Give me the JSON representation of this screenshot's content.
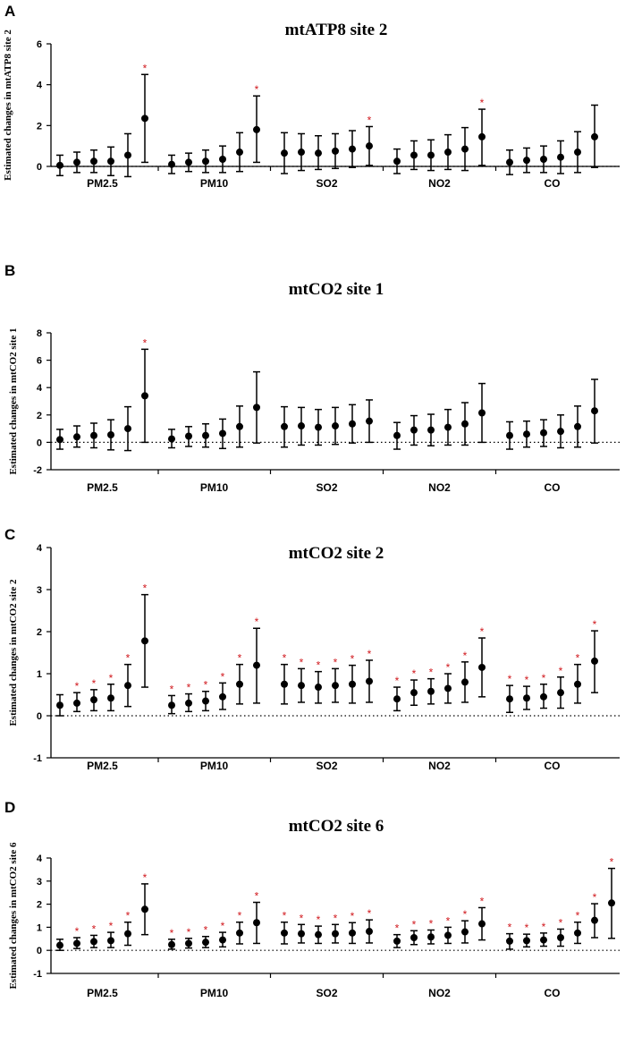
{
  "figure": {
    "colors": {
      "marker": "#000000",
      "significance": "#d0161b"
    }
  },
  "chart_data": [
    {
      "panel_letter": "A",
      "type": "scatter",
      "title": "mtATP8 site 2",
      "ylabel": "Estimated changes in mtATP8 site 2",
      "xlabel": "",
      "ylim": [
        0,
        6
      ],
      "yticks": [
        "0",
        "2",
        "4",
        "6"
      ],
      "reference_line": 0,
      "categories": [
        "PM2.5",
        "PM10",
        "SO2",
        "NO2",
        "CO"
      ],
      "groups": [
        {
          "category": "PM2.5",
          "points": [
            {
              "est": 0.05,
              "lo": -0.45,
              "hi": 0.55,
              "sig": false
            },
            {
              "est": 0.2,
              "lo": -0.3,
              "hi": 0.7,
              "sig": false
            },
            {
              "est": 0.25,
              "lo": -0.3,
              "hi": 0.8,
              "sig": false
            },
            {
              "est": 0.25,
              "lo": -0.45,
              "hi": 0.95,
              "sig": false
            },
            {
              "est": 0.55,
              "lo": -0.5,
              "hi": 1.6,
              "sig": false
            },
            {
              "est": 2.35,
              "lo": 0.2,
              "hi": 4.5,
              "sig": true
            }
          ]
        },
        {
          "category": "PM10",
          "points": [
            {
              "est": 0.1,
              "lo": -0.35,
              "hi": 0.55,
              "sig": false
            },
            {
              "est": 0.2,
              "lo": -0.25,
              "hi": 0.65,
              "sig": false
            },
            {
              "est": 0.25,
              "lo": -0.3,
              "hi": 0.8,
              "sig": false
            },
            {
              "est": 0.35,
              "lo": -0.3,
              "hi": 1.0,
              "sig": false
            },
            {
              "est": 0.7,
              "lo": -0.25,
              "hi": 1.65,
              "sig": false
            },
            {
              "est": 1.8,
              "lo": 0.2,
              "hi": 3.45,
              "sig": true
            }
          ]
        },
        {
          "category": "SO2",
          "points": [
            {
              "est": 0.65,
              "lo": -0.35,
              "hi": 1.65,
              "sig": false
            },
            {
              "est": 0.7,
              "lo": -0.2,
              "hi": 1.6,
              "sig": false
            },
            {
              "est": 0.65,
              "lo": -0.15,
              "hi": 1.5,
              "sig": false
            },
            {
              "est": 0.75,
              "lo": -0.1,
              "hi": 1.6,
              "sig": false
            },
            {
              "est": 0.85,
              "lo": -0.05,
              "hi": 1.75,
              "sig": false
            },
            {
              "est": 1.0,
              "lo": 0.05,
              "hi": 1.95,
              "sig": true
            }
          ]
        },
        {
          "category": "NO2",
          "points": [
            {
              "est": 0.25,
              "lo": -0.35,
              "hi": 0.85,
              "sig": false
            },
            {
              "est": 0.55,
              "lo": -0.15,
              "hi": 1.25,
              "sig": false
            },
            {
              "est": 0.55,
              "lo": -0.2,
              "hi": 1.3,
              "sig": false
            },
            {
              "est": 0.7,
              "lo": -0.15,
              "hi": 1.55,
              "sig": false
            },
            {
              "est": 0.85,
              "lo": -0.2,
              "hi": 1.9,
              "sig": false
            },
            {
              "est": 1.45,
              "lo": 0.05,
              "hi": 2.8,
              "sig": true
            }
          ]
        },
        {
          "category": "CO",
          "points": [
            {
              "est": 0.2,
              "lo": -0.4,
              "hi": 0.8,
              "sig": false
            },
            {
              "est": 0.3,
              "lo": -0.3,
              "hi": 0.9,
              "sig": false
            },
            {
              "est": 0.35,
              "lo": -0.3,
              "hi": 1.0,
              "sig": false
            },
            {
              "est": 0.45,
              "lo": -0.35,
              "hi": 1.25,
              "sig": false
            },
            {
              "est": 0.7,
              "lo": -0.3,
              "hi": 1.7,
              "sig": false
            },
            {
              "est": 1.45,
              "lo": -0.05,
              "hi": 3.0,
              "sig": false
            }
          ]
        }
      ]
    },
    {
      "panel_letter": "B",
      "type": "scatter",
      "title": "mtCO2 site 1",
      "ylabel": "Estimated changes in mtCO2 site 1",
      "xlabel": "",
      "ylim": [
        -2,
        8
      ],
      "yticks": [
        "-2",
        "0",
        "2",
        "4",
        "6",
        "8"
      ],
      "reference_line": 0,
      "categories": [
        "PM2.5",
        "PM10",
        "SO2",
        "NO2",
        "CO"
      ],
      "groups": [
        {
          "category": "PM2.5",
          "points": [
            {
              "est": 0.2,
              "lo": -0.5,
              "hi": 0.95,
              "sig": false
            },
            {
              "est": 0.4,
              "lo": -0.35,
              "hi": 1.2,
              "sig": false
            },
            {
              "est": 0.5,
              "lo": -0.4,
              "hi": 1.4,
              "sig": false
            },
            {
              "est": 0.55,
              "lo": -0.55,
              "hi": 1.65,
              "sig": false
            },
            {
              "est": 1.0,
              "lo": -0.6,
              "hi": 2.6,
              "sig": false
            },
            {
              "est": 3.4,
              "lo": 0.0,
              "hi": 6.8,
              "sig": true
            }
          ]
        },
        {
          "category": "PM10",
          "points": [
            {
              "est": 0.25,
              "lo": -0.4,
              "hi": 0.95,
              "sig": false
            },
            {
              "est": 0.45,
              "lo": -0.3,
              "hi": 1.15,
              "sig": false
            },
            {
              "est": 0.5,
              "lo": -0.35,
              "hi": 1.35,
              "sig": false
            },
            {
              "est": 0.65,
              "lo": -0.45,
              "hi": 1.7,
              "sig": false
            },
            {
              "est": 1.15,
              "lo": -0.35,
              "hi": 2.65,
              "sig": false
            },
            {
              "est": 2.55,
              "lo": -0.05,
              "hi": 5.15,
              "sig": false
            }
          ]
        },
        {
          "category": "SO2",
          "points": [
            {
              "est": 1.15,
              "lo": -0.35,
              "hi": 2.6,
              "sig": false
            },
            {
              "est": 1.2,
              "lo": -0.2,
              "hi": 2.55,
              "sig": false
            },
            {
              "est": 1.1,
              "lo": -0.2,
              "hi": 2.4,
              "sig": false
            },
            {
              "est": 1.2,
              "lo": -0.15,
              "hi": 2.55,
              "sig": false
            },
            {
              "est": 1.35,
              "lo": -0.05,
              "hi": 2.75,
              "sig": false
            },
            {
              "est": 1.55,
              "lo": 0.0,
              "hi": 3.1,
              "sig": false
            }
          ]
        },
        {
          "category": "NO2",
          "points": [
            {
              "est": 0.5,
              "lo": -0.5,
              "hi": 1.45,
              "sig": false
            },
            {
              "est": 0.9,
              "lo": -0.2,
              "hi": 1.95,
              "sig": false
            },
            {
              "est": 0.9,
              "lo": -0.25,
              "hi": 2.05,
              "sig": false
            },
            {
              "est": 1.1,
              "lo": -0.2,
              "hi": 2.4,
              "sig": false
            },
            {
              "est": 1.35,
              "lo": -0.2,
              "hi": 2.9,
              "sig": false
            },
            {
              "est": 2.15,
              "lo": 0.0,
              "hi": 4.3,
              "sig": false
            }
          ]
        },
        {
          "category": "CO",
          "points": [
            {
              "est": 0.5,
              "lo": -0.5,
              "hi": 1.5,
              "sig": false
            },
            {
              "est": 0.6,
              "lo": -0.35,
              "hi": 1.55,
              "sig": false
            },
            {
              "est": 0.7,
              "lo": -0.3,
              "hi": 1.65,
              "sig": false
            },
            {
              "est": 0.8,
              "lo": -0.4,
              "hi": 2.0,
              "sig": false
            },
            {
              "est": 1.15,
              "lo": -0.35,
              "hi": 2.65,
              "sig": false
            },
            {
              "est": 2.3,
              "lo": -0.05,
              "hi": 4.6,
              "sig": false
            }
          ]
        }
      ]
    },
    {
      "panel_letter": "C",
      "type": "scatter",
      "title": "mtCO2 site 2",
      "ylabel": "Estimated changes in mtCO2 site 2",
      "xlabel": "",
      "ylim": [
        -1,
        4
      ],
      "yticks": [
        "-1",
        "0",
        "1",
        "2",
        "3",
        "4"
      ],
      "reference_line": 0,
      "categories": [
        "PM2.5",
        "PM10",
        "SO2",
        "NO2",
        "CO"
      ],
      "groups": [
        {
          "category": "PM2.5",
          "points": [
            {
              "est": 0.25,
              "lo": 0.0,
              "hi": 0.5,
              "sig": false
            },
            {
              "est": 0.3,
              "lo": 0.1,
              "hi": 0.55,
              "sig": true
            },
            {
              "est": 0.38,
              "lo": 0.12,
              "hi": 0.62,
              "sig": true
            },
            {
              "est": 0.42,
              "lo": 0.12,
              "hi": 0.75,
              "sig": true
            },
            {
              "est": 0.72,
              "lo": 0.22,
              "hi": 1.22,
              "sig": true
            },
            {
              "est": 1.78,
              "lo": 0.68,
              "hi": 2.88,
              "sig": true
            }
          ]
        },
        {
          "category": "PM10",
          "points": [
            {
              "est": 0.25,
              "lo": 0.05,
              "hi": 0.48,
              "sig": true
            },
            {
              "est": 0.3,
              "lo": 0.1,
              "hi": 0.52,
              "sig": true
            },
            {
              "est": 0.35,
              "lo": 0.12,
              "hi": 0.58,
              "sig": true
            },
            {
              "est": 0.45,
              "lo": 0.15,
              "hi": 0.78,
              "sig": true
            },
            {
              "est": 0.75,
              "lo": 0.28,
              "hi": 1.22,
              "sig": true
            },
            {
              "est": 1.2,
              "lo": 0.3,
              "hi": 2.08,
              "sig": true
            }
          ]
        },
        {
          "category": "SO2",
          "points": [
            {
              "est": 0.75,
              "lo": 0.28,
              "hi": 1.22,
              "sig": true
            },
            {
              "est": 0.72,
              "lo": 0.32,
              "hi": 1.12,
              "sig": true
            },
            {
              "est": 0.68,
              "lo": 0.3,
              "hi": 1.05,
              "sig": true
            },
            {
              "est": 0.72,
              "lo": 0.32,
              "hi": 1.12,
              "sig": true
            },
            {
              "est": 0.75,
              "lo": 0.3,
              "hi": 1.2,
              "sig": true
            },
            {
              "est": 0.82,
              "lo": 0.32,
              "hi": 1.32,
              "sig": true
            }
          ]
        },
        {
          "category": "NO2",
          "points": [
            {
              "est": 0.4,
              "lo": 0.12,
              "hi": 0.68,
              "sig": true
            },
            {
              "est": 0.55,
              "lo": 0.25,
              "hi": 0.85,
              "sig": true
            },
            {
              "est": 0.58,
              "lo": 0.28,
              "hi": 0.88,
              "sig": true
            },
            {
              "est": 0.65,
              "lo": 0.3,
              "hi": 1.0,
              "sig": true
            },
            {
              "est": 0.8,
              "lo": 0.32,
              "hi": 1.28,
              "sig": true
            },
            {
              "est": 1.15,
              "lo": 0.45,
              "hi": 1.85,
              "sig": true
            }
          ]
        },
        {
          "category": "CO",
          "points": [
            {
              "est": 0.4,
              "lo": 0.08,
              "hi": 0.72,
              "sig": true
            },
            {
              "est": 0.42,
              "lo": 0.15,
              "hi": 0.7,
              "sig": true
            },
            {
              "est": 0.45,
              "lo": 0.18,
              "hi": 0.75,
              "sig": true
            },
            {
              "est": 0.55,
              "lo": 0.18,
              "hi": 0.92,
              "sig": true
            },
            {
              "est": 0.75,
              "lo": 0.3,
              "hi": 1.22,
              "sig": true
            },
            {
              "est": 1.3,
              "lo": 0.55,
              "hi": 2.02,
              "sig": true
            }
          ]
        }
      ]
    },
    {
      "panel_letter": "D",
      "type": "scatter",
      "title": "mtCO2 site 6",
      "ylabel": "Estimated changes in mtCO2 site 6",
      "xlabel": "",
      "ylim": [
        -1,
        4
      ],
      "yticks": [
        "-1",
        "0",
        "1",
        "2",
        "3",
        "4"
      ],
      "reference_line": 0,
      "categories": [
        "PM2.5",
        "PM10",
        "SO2",
        "NO2",
        "CO"
      ],
      "groups": [
        {
          "category": "PM2.5",
          "points": [
            {
              "est": 0.22,
              "lo": 0.0,
              "hi": 0.48,
              "sig": false
            },
            {
              "est": 0.3,
              "lo": 0.08,
              "hi": 0.55,
              "sig": true
            },
            {
              "est": 0.38,
              "lo": 0.12,
              "hi": 0.65,
              "sig": true
            },
            {
              "est": 0.42,
              "lo": 0.12,
              "hi": 0.78,
              "sig": true
            },
            {
              "est": 0.72,
              "lo": 0.22,
              "hi": 1.22,
              "sig": true
            },
            {
              "est": 1.78,
              "lo": 0.68,
              "hi": 2.88,
              "sig": true
            }
          ]
        },
        {
          "category": "PM10",
          "points": [
            {
              "est": 0.25,
              "lo": 0.05,
              "hi": 0.48,
              "sig": true
            },
            {
              "est": 0.3,
              "lo": 0.1,
              "hi": 0.52,
              "sig": true
            },
            {
              "est": 0.35,
              "lo": 0.12,
              "hi": 0.6,
              "sig": true
            },
            {
              "est": 0.45,
              "lo": 0.15,
              "hi": 0.78,
              "sig": true
            },
            {
              "est": 0.75,
              "lo": 0.28,
              "hi": 1.22,
              "sig": true
            },
            {
              "est": 1.2,
              "lo": 0.3,
              "hi": 2.08,
              "sig": true
            }
          ]
        },
        {
          "category": "SO2",
          "points": [
            {
              "est": 0.75,
              "lo": 0.28,
              "hi": 1.22,
              "sig": true
            },
            {
              "est": 0.72,
              "lo": 0.32,
              "hi": 1.12,
              "sig": true
            },
            {
              "est": 0.68,
              "lo": 0.3,
              "hi": 1.05,
              "sig": true
            },
            {
              "est": 0.72,
              "lo": 0.32,
              "hi": 1.12,
              "sig": true
            },
            {
              "est": 0.75,
              "lo": 0.3,
              "hi": 1.2,
              "sig": true
            },
            {
              "est": 0.82,
              "lo": 0.32,
              "hi": 1.32,
              "sig": true
            }
          ]
        },
        {
          "category": "NO2",
          "points": [
            {
              "est": 0.4,
              "lo": 0.12,
              "hi": 0.68,
              "sig": true
            },
            {
              "est": 0.55,
              "lo": 0.25,
              "hi": 0.85,
              "sig": true
            },
            {
              "est": 0.58,
              "lo": 0.28,
              "hi": 0.88,
              "sig": true
            },
            {
              "est": 0.65,
              "lo": 0.3,
              "hi": 1.0,
              "sig": true
            },
            {
              "est": 0.8,
              "lo": 0.32,
              "hi": 1.28,
              "sig": true
            },
            {
              "est": 1.15,
              "lo": 0.45,
              "hi": 1.85,
              "sig": true
            }
          ]
        },
        {
          "category": "CO",
          "points": [
            {
              "est": 0.4,
              "lo": 0.05,
              "hi": 0.72,
              "sig": true
            },
            {
              "est": 0.42,
              "lo": 0.15,
              "hi": 0.7,
              "sig": true
            },
            {
              "est": 0.45,
              "lo": 0.18,
              "hi": 0.75,
              "sig": true
            },
            {
              "est": 0.55,
              "lo": 0.18,
              "hi": 0.92,
              "sig": true
            },
            {
              "est": 0.75,
              "lo": 0.3,
              "hi": 1.22,
              "sig": true
            },
            {
              "est": 1.3,
              "lo": 0.55,
              "hi": 2.02,
              "sig": true
            },
            {
              "est": 2.05,
              "lo": 0.52,
              "hi": 3.55,
              "sig": true
            }
          ]
        }
      ]
    }
  ]
}
